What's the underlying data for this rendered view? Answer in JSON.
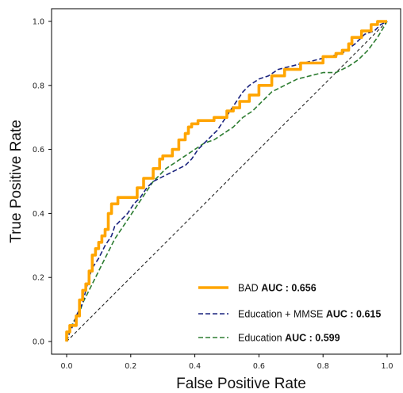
{
  "chart_data": {
    "type": "line",
    "title": "",
    "xlabel": "False Positive Rate",
    "ylabel": "True Positive Rate",
    "xlim": [
      0.0,
      1.0
    ],
    "ylim": [
      0.0,
      1.0
    ],
    "xticks": [
      "0.0",
      "0.2",
      "0.4",
      "0.6",
      "0.8",
      "1.0"
    ],
    "yticks": [
      "0.0",
      "0.2",
      "0.4",
      "0.6",
      "0.8",
      "1.0"
    ],
    "grid": false,
    "legend_position": "lower-right",
    "diagonal_reference": {
      "x": [
        0,
        1
      ],
      "y": [
        0,
        1
      ],
      "color": "#222222",
      "style": "dashed"
    },
    "series": [
      {
        "name": "BAD",
        "auc_label": "AUC : 0.656",
        "color": "#FFA500",
        "style": "solid",
        "x": [
          0,
          0,
          0.01,
          0.01,
          0.03,
          0.03,
          0.04,
          0.04,
          0.05,
          0.05,
          0.06,
          0.06,
          0.07,
          0.07,
          0.08,
          0.08,
          0.09,
          0.09,
          0.1,
          0.1,
          0.11,
          0.11,
          0.12,
          0.12,
          0.13,
          0.13,
          0.14,
          0.14,
          0.16,
          0.16,
          0.22,
          0.22,
          0.24,
          0.24,
          0.27,
          0.27,
          0.29,
          0.29,
          0.3,
          0.3,
          0.33,
          0.33,
          0.35,
          0.35,
          0.37,
          0.37,
          0.38,
          0.38,
          0.39,
          0.39,
          0.41,
          0.41,
          0.43,
          0.43,
          0.46,
          0.46,
          0.5,
          0.5,
          0.52,
          0.52,
          0.54,
          0.54,
          0.57,
          0.57,
          0.6,
          0.6,
          0.64,
          0.64,
          0.68,
          0.68,
          0.73,
          0.73,
          0.8,
          0.8,
          0.84,
          0.84,
          0.86,
          0.86,
          0.88,
          0.88,
          0.89,
          0.89,
          0.92,
          0.92,
          0.95,
          0.95,
          0.97,
          0.97,
          1.0
        ],
        "y": [
          0,
          0.03,
          0.03,
          0.05,
          0.05,
          0.08,
          0.08,
          0.13,
          0.13,
          0.16,
          0.16,
          0.18,
          0.18,
          0.22,
          0.22,
          0.27,
          0.27,
          0.29,
          0.29,
          0.31,
          0.31,
          0.33,
          0.33,
          0.35,
          0.35,
          0.4,
          0.4,
          0.43,
          0.43,
          0.45,
          0.45,
          0.48,
          0.48,
          0.51,
          0.51,
          0.54,
          0.54,
          0.57,
          0.57,
          0.58,
          0.58,
          0.6,
          0.6,
          0.63,
          0.63,
          0.65,
          0.65,
          0.67,
          0.67,
          0.68,
          0.68,
          0.69,
          0.69,
          0.69,
          0.69,
          0.7,
          0.7,
          0.72,
          0.72,
          0.73,
          0.73,
          0.75,
          0.75,
          0.77,
          0.77,
          0.8,
          0.8,
          0.83,
          0.83,
          0.85,
          0.85,
          0.87,
          0.87,
          0.89,
          0.89,
          0.9,
          0.9,
          0.91,
          0.91,
          0.93,
          0.93,
          0.95,
          0.95,
          0.97,
          0.97,
          0.99,
          0.99,
          1.0,
          1.0
        ]
      },
      {
        "name": "Education + MMSE",
        "auc_label": "AUC : 0.615",
        "color": "#1a237e",
        "style": "dashed",
        "x": [
          0,
          0.01,
          0.02,
          0.03,
          0.05,
          0.06,
          0.07,
          0.08,
          0.1,
          0.12,
          0.14,
          0.15,
          0.17,
          0.19,
          0.21,
          0.23,
          0.25,
          0.27,
          0.29,
          0.31,
          0.33,
          0.35,
          0.37,
          0.39,
          0.41,
          0.43,
          0.45,
          0.47,
          0.49,
          0.51,
          0.53,
          0.55,
          0.57,
          0.6,
          0.63,
          0.66,
          0.7,
          0.74,
          0.78,
          0.82,
          0.86,
          0.9,
          0.93,
          0.96,
          0.98,
          1.0
        ],
        "y": [
          0,
          0.03,
          0.05,
          0.08,
          0.12,
          0.16,
          0.2,
          0.23,
          0.26,
          0.3,
          0.33,
          0.36,
          0.38,
          0.4,
          0.43,
          0.45,
          0.48,
          0.5,
          0.51,
          0.52,
          0.53,
          0.54,
          0.55,
          0.57,
          0.6,
          0.62,
          0.64,
          0.66,
          0.69,
          0.72,
          0.75,
          0.78,
          0.8,
          0.82,
          0.83,
          0.85,
          0.86,
          0.87,
          0.88,
          0.89,
          0.9,
          0.93,
          0.96,
          0.97,
          0.99,
          1.0
        ]
      },
      {
        "name": "Education",
        "auc_label": "AUC : 0.599",
        "color": "#2e7d32",
        "style": "dashed",
        "x": [
          0,
          0.01,
          0.02,
          0.04,
          0.05,
          0.07,
          0.09,
          0.11,
          0.13,
          0.15,
          0.17,
          0.19,
          0.21,
          0.23,
          0.25,
          0.27,
          0.29,
          0.31,
          0.34,
          0.37,
          0.4,
          0.43,
          0.46,
          0.49,
          0.52,
          0.55,
          0.58,
          0.6,
          0.62,
          0.64,
          0.68,
          0.72,
          0.76,
          0.8,
          0.84,
          0.88,
          0.91,
          0.94,
          0.97,
          1.0
        ],
        "y": [
          0,
          0.03,
          0.06,
          0.09,
          0.12,
          0.16,
          0.2,
          0.24,
          0.28,
          0.32,
          0.35,
          0.38,
          0.41,
          0.44,
          0.47,
          0.5,
          0.52,
          0.54,
          0.56,
          0.58,
          0.6,
          0.62,
          0.63,
          0.65,
          0.67,
          0.7,
          0.72,
          0.74,
          0.76,
          0.78,
          0.8,
          0.82,
          0.83,
          0.84,
          0.84,
          0.86,
          0.88,
          0.91,
          0.95,
          1.0
        ]
      }
    ]
  }
}
